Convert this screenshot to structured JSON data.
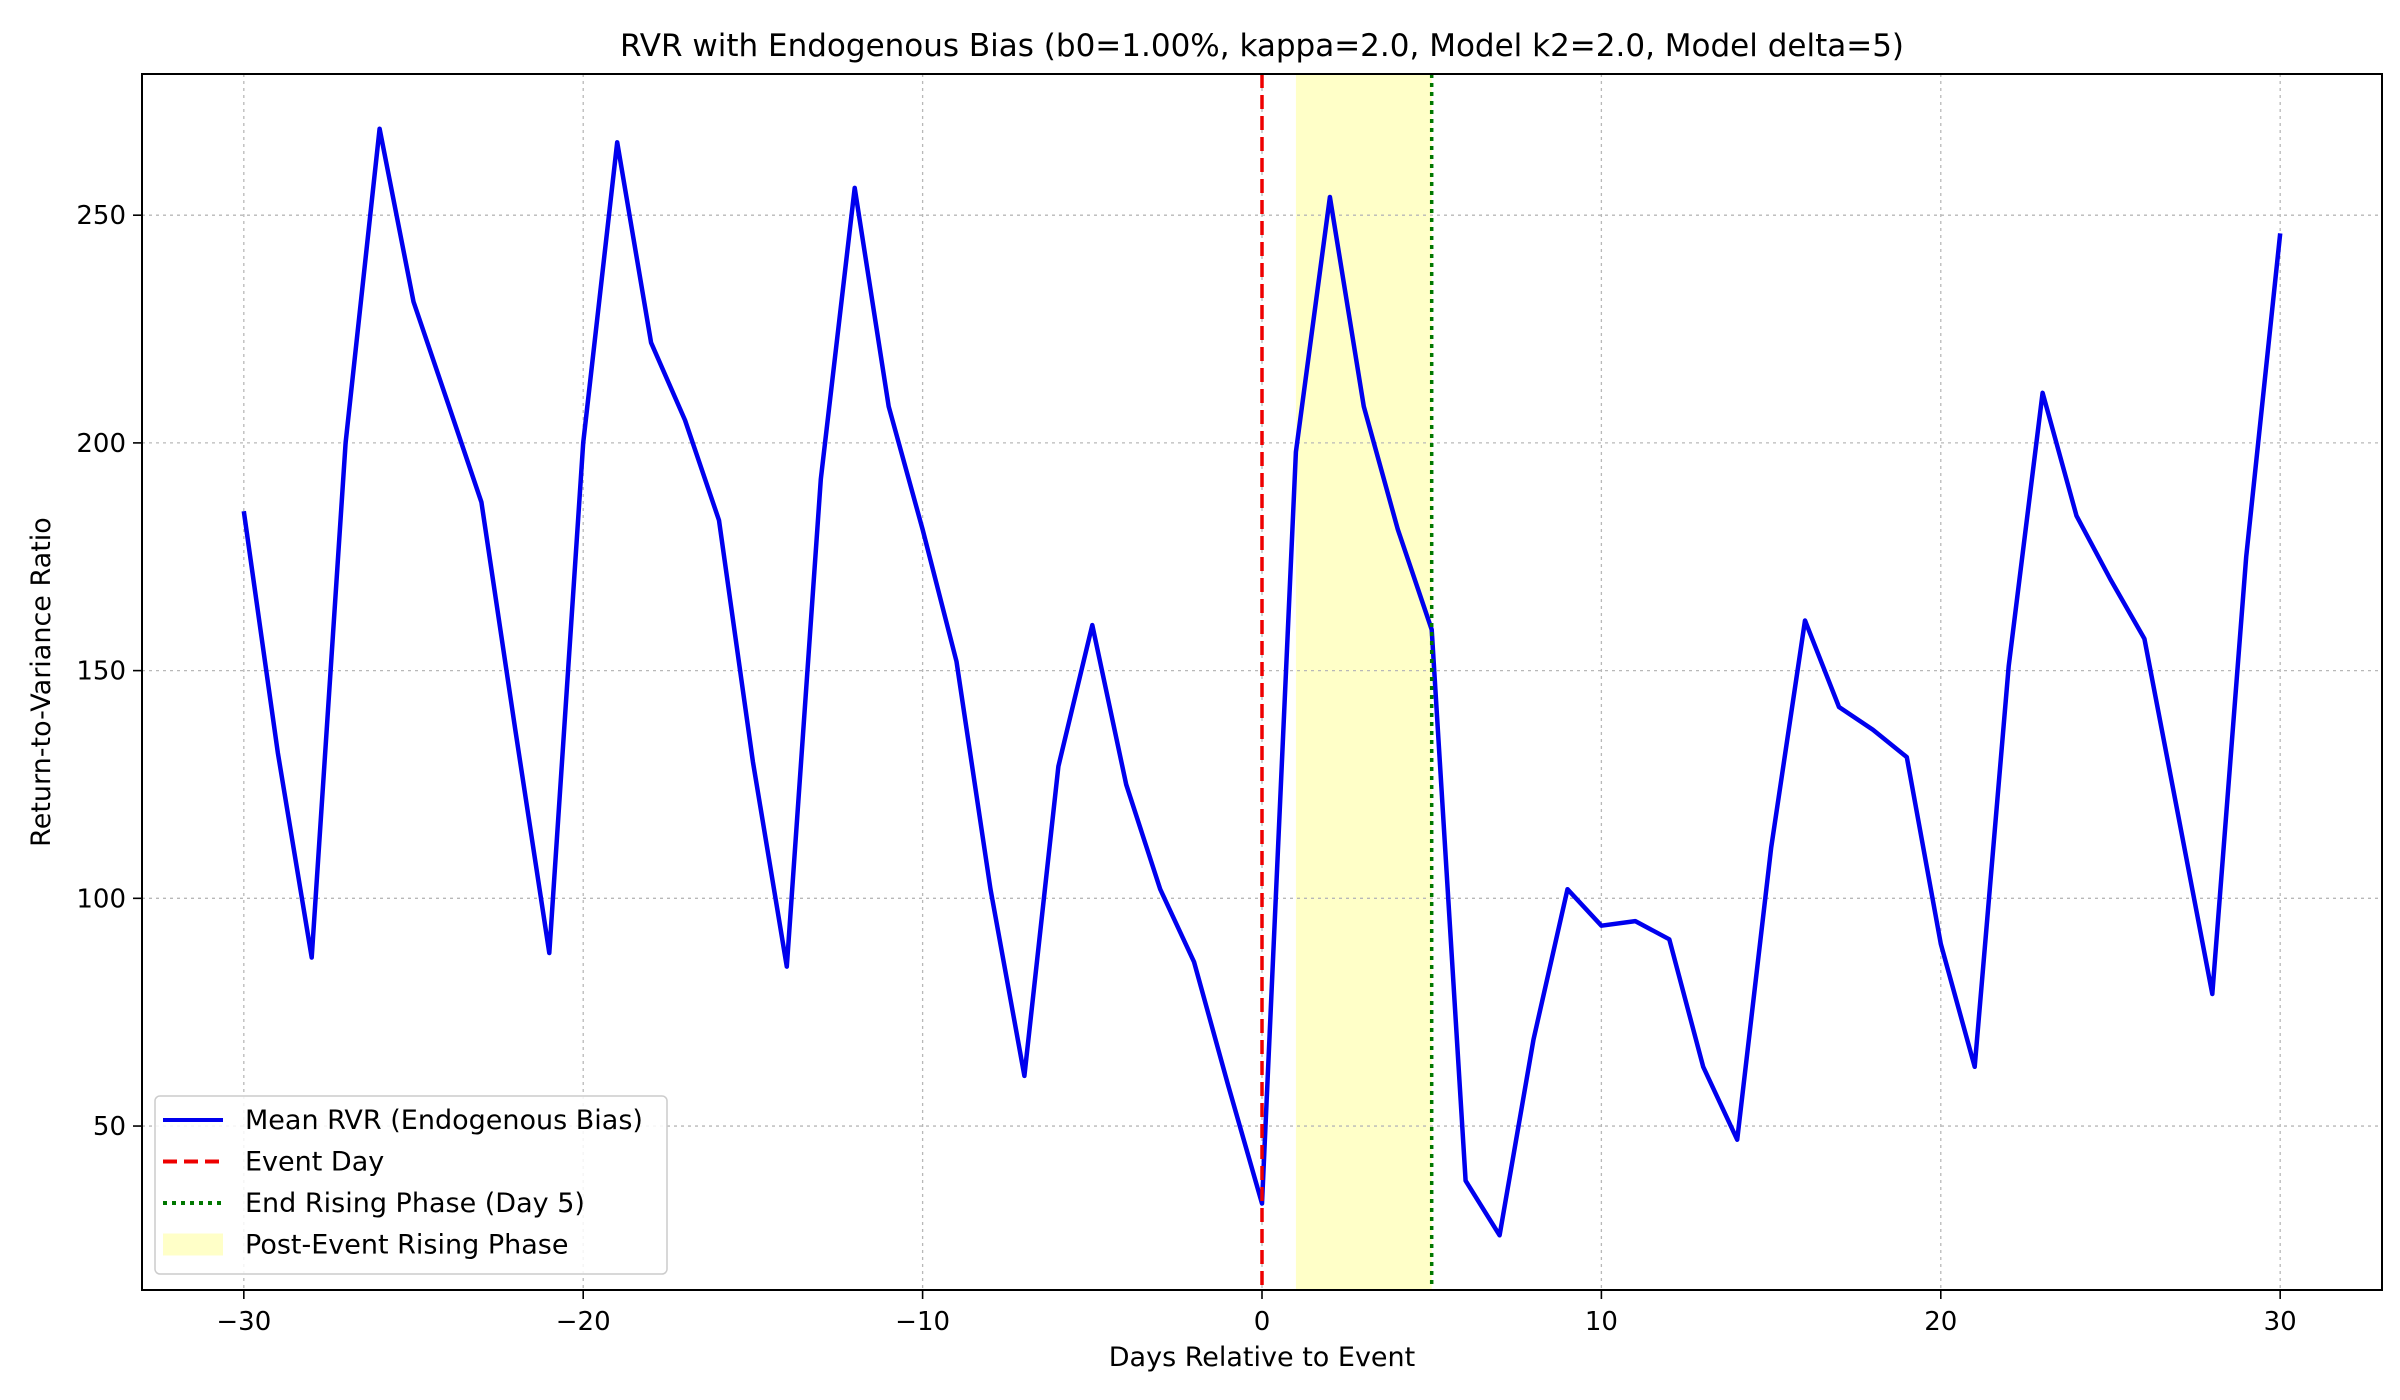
{
  "chart_data": {
    "type": "line",
    "title": "RVR with Endogenous Bias (b0=1.00%, kappa=2.0, Model k2=2.0, Model delta=5)",
    "xlabel": "Days Relative to Event",
    "ylabel": "Return-to-Variance Ratio",
    "xlim": [
      -33,
      33
    ],
    "ylim": [
      14,
      281
    ],
    "xticks": [
      -30,
      -20,
      -10,
      0,
      10,
      20,
      30
    ],
    "xtick_labels": [
      "−30",
      "−20",
      "−10",
      "0",
      "10",
      "20",
      "30"
    ],
    "yticks": [
      50,
      100,
      150,
      200,
      250
    ],
    "ytick_labels": [
      "50",
      "100",
      "150",
      "200",
      "250"
    ],
    "grid": true,
    "legend_position": "lower-left",
    "series": [
      {
        "name": "Mean RVR (Endogenous Bias)",
        "color": "#0000ee",
        "x": [
          -30,
          -29,
          -28,
          -27,
          -26,
          -25,
          -24,
          -23,
          -22,
          -21,
          -20,
          -19,
          -18,
          -17,
          -16,
          -15,
          -14,
          -13,
          -12,
          -11,
          -10,
          -9,
          -8,
          -7,
          -6,
          -5,
          -4,
          -3,
          -2,
          -1,
          0,
          1,
          2,
          3,
          4,
          5,
          6,
          7,
          8,
          9,
          10,
          11,
          12,
          13,
          14,
          15,
          16,
          17,
          18,
          19,
          20,
          21,
          22,
          23,
          24,
          25,
          26,
          27,
          28,
          29,
          30
        ],
        "y": [
          185,
          132,
          87,
          200,
          269,
          231,
          209,
          187,
          137,
          88,
          200,
          266,
          222,
          205,
          183,
          130,
          85,
          192,
          256,
          208,
          181,
          152,
          102,
          61,
          129,
          160,
          125,
          102,
          86,
          59,
          33,
          198,
          254,
          208,
          181,
          159,
          38,
          26,
          69,
          102,
          94,
          95,
          91,
          63,
          47,
          111,
          161,
          142,
          137,
          131,
          90,
          63,
          151,
          211,
          184,
          170,
          157,
          118,
          79,
          175,
          246
        ]
      }
    ],
    "reference_lines": [
      {
        "name": "Event Day",
        "x": 0,
        "color": "#ee0000",
        "style": "dashed"
      },
      {
        "name": "End Rising Phase (Day 5)",
        "x": 5,
        "color": "#007700",
        "style": "dotted"
      }
    ],
    "shaded_regions": [
      {
        "name": "Post-Event Rising Phase",
        "x_start": 1,
        "x_end": 5,
        "color": "#ffffc8"
      }
    ],
    "legend": [
      {
        "label": "Mean RVR (Endogenous Bias)",
        "kind": "line-solid",
        "color": "#0000ee"
      },
      {
        "label": "Event Day",
        "kind": "line-dashed",
        "color": "#ee0000"
      },
      {
        "label": "End Rising Phase (Day 5)",
        "kind": "line-dotted",
        "color": "#007700"
      },
      {
        "label": "Post-Event Rising Phase",
        "kind": "patch",
        "color": "#ffffc8"
      }
    ]
  }
}
